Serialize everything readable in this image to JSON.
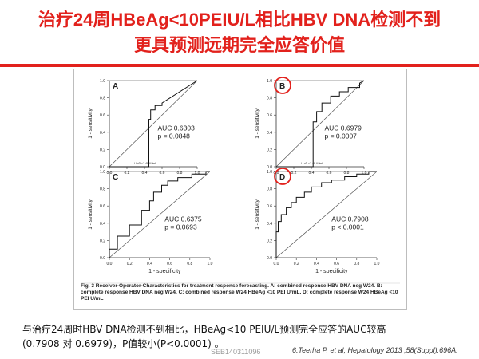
{
  "slide": {
    "title_line1": "治疗24周HBeAg<10PEIU/L相比HBV  DNA检测不到",
    "title_line2": "更具预测远期完全应答价值",
    "caption": "Fig. 3 Receiver-Operator-Characteristics for treatment response forecasting. A: combined response HBV DNA neg W24. B: complete response HBV DNA neg W24. C: combined response W24 HBeAg  <10 PEI U/mL, D: complete response W24 HBeAg  <10 PEI U/mL",
    "bottom_text_line1": "与治疗24周时HBV  DNA检测不到相比，HBeAg<10  PEIU/L预测完全应答的AUC较高",
    "bottom_text_line2": "(0.7908 对 0.6979)，P值较小(P<0.0001) 。",
    "watermark": "SEB140311096",
    "citation": "6.Teerha P. et al; Hepatology 2013 ;58(Suppl):696A.",
    "accent_color": "#e2211c",
    "highlight_circle_color": "#e2211c"
  },
  "chart_data": [
    {
      "type": "line",
      "panel": "A",
      "ylabel": "1 - sensitivity",
      "xlabel": "",
      "xlim": [
        0,
        1
      ],
      "ylim": [
        0,
        1
      ],
      "x_ticks": [
        "0.0",
        "0.2",
        "0.4",
        "0.6",
        "0.8",
        "1.0"
      ],
      "y_ticks": [
        "0.0",
        "0.2",
        "0.4",
        "0.6",
        "0.8",
        "1.0"
      ],
      "highlighted": false,
      "annotation": [
        "AUC 0.6303",
        "p = 0.0848"
      ],
      "small_label": "LLoD <2.48 IU/mL",
      "x": [
        0,
        0.0,
        0.45,
        0.45,
        0.47,
        0.47,
        0.52,
        0.52,
        0.6,
        0.6,
        1.0
      ],
      "y": [
        0,
        0.0,
        0.0,
        0.55,
        0.55,
        0.66,
        0.66,
        0.71,
        0.71,
        0.74,
        1.0
      ],
      "diagonal": true
    },
    {
      "type": "line",
      "panel": "B",
      "ylabel": "1 - sensitivity",
      "xlabel": "",
      "xlim": [
        0,
        1
      ],
      "ylim": [
        0,
        1
      ],
      "x_ticks": [
        "0.0",
        "0.2",
        "0.4",
        "0.6",
        "0.8",
        "1.0"
      ],
      "y_ticks": [
        "0.0",
        "0.2",
        "0.4",
        "0.6",
        "0.8",
        "1.0"
      ],
      "highlighted": true,
      "annotation": [
        "AUC 0.6979",
        "p = 0.0007"
      ],
      "small_label": "LLoD <2.48 IU/mL",
      "x": [
        0,
        0.0,
        0.42,
        0.42,
        0.46,
        0.46,
        0.52,
        0.52,
        0.62,
        0.62,
        0.72,
        0.72,
        0.82,
        0.82,
        0.95,
        0.95,
        1.0
      ],
      "y": [
        0,
        0.0,
        0.0,
        0.52,
        0.52,
        0.64,
        0.64,
        0.74,
        0.74,
        0.82,
        0.82,
        0.87,
        0.87,
        0.92,
        0.92,
        0.97,
        1.0
      ],
      "diagonal": true
    },
    {
      "type": "line",
      "panel": "C",
      "ylabel": "1 - sensitivity",
      "xlabel": "1 - specificity",
      "xlim": [
        0,
        1
      ],
      "ylim": [
        0,
        1
      ],
      "x_ticks": [
        "0.0",
        "0.2",
        "0.4",
        "0.6",
        "0.8",
        "1.0"
      ],
      "y_ticks": [
        "0.0",
        "0.2",
        "0.4",
        "0.6",
        "0.8",
        "1.0"
      ],
      "highlighted": false,
      "annotation": [
        "AUC 0.6375",
        "p = 0.0693"
      ],
      "small_label": "",
      "x": [
        0,
        0.0,
        0.08,
        0.08,
        0.2,
        0.2,
        0.32,
        0.32,
        0.4,
        0.4,
        0.44,
        0.44,
        0.52,
        0.52,
        0.58,
        0.58,
        0.68,
        0.68,
        0.82,
        0.82,
        0.96,
        0.96,
        1.0
      ],
      "y": [
        0,
        0.1,
        0.1,
        0.25,
        0.25,
        0.38,
        0.38,
        0.55,
        0.55,
        0.66,
        0.66,
        0.76,
        0.76,
        0.84,
        0.84,
        0.89,
        0.89,
        0.93,
        0.93,
        0.97,
        0.97,
        1.0,
        1.0
      ],
      "diagonal": true
    },
    {
      "type": "line",
      "panel": "D",
      "ylabel": "1 - sensitivity",
      "xlabel": "1 - specificity",
      "xlim": [
        0,
        1
      ],
      "ylim": [
        0,
        1
      ],
      "x_ticks": [
        "0.0",
        "0.2",
        "0.4",
        "0.6",
        "0.8",
        "1.0"
      ],
      "y_ticks": [
        "0.0",
        "0.2",
        "0.4",
        "0.6",
        "0.8",
        "1.0"
      ],
      "highlighted": true,
      "annotation": [
        "AUC 0.7908",
        "p < 0.0001"
      ],
      "small_label": "",
      "x": [
        0,
        0.0,
        0.02,
        0.02,
        0.05,
        0.05,
        0.1,
        0.1,
        0.15,
        0.15,
        0.2,
        0.2,
        0.28,
        0.28,
        0.35,
        0.35,
        0.45,
        0.45,
        0.55,
        0.55,
        0.68,
        0.68,
        0.8,
        0.8,
        0.92,
        0.92,
        1.0
      ],
      "y": [
        0,
        0.3,
        0.3,
        0.42,
        0.42,
        0.5,
        0.5,
        0.58,
        0.58,
        0.64,
        0.64,
        0.7,
        0.7,
        0.76,
        0.76,
        0.82,
        0.82,
        0.87,
        0.87,
        0.9,
        0.9,
        0.94,
        0.94,
        0.97,
        0.97,
        1.0,
        1.0
      ],
      "diagonal": true
    }
  ]
}
